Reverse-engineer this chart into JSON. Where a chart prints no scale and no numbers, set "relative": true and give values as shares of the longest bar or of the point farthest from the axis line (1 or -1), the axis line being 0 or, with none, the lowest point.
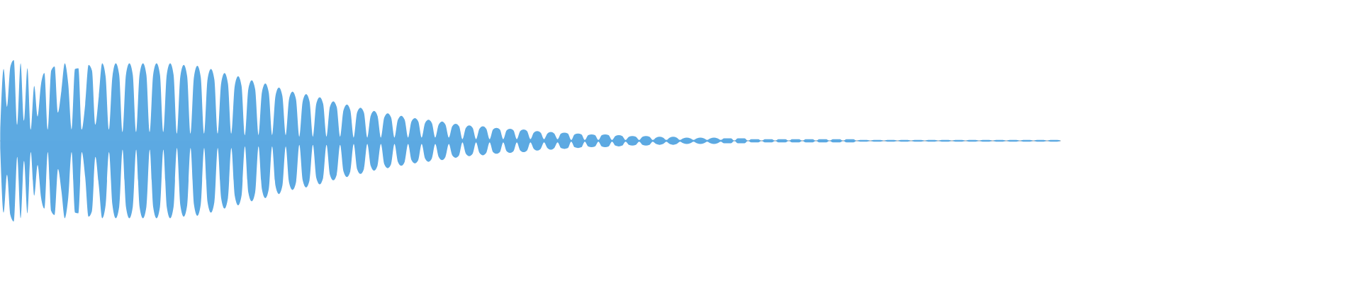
{
  "chart_data": {
    "type": "area",
    "relative": true,
    "categories": [
      null,
      null,
      null,
      null,
      null,
      null,
      null,
      null,
      null,
      null,
      null,
      null,
      null,
      null,
      null,
      null,
      null,
      null,
      null,
      null,
      null,
      null,
      null,
      null,
      null,
      null,
      null,
      null,
      null,
      null,
      null,
      null,
      null,
      null,
      null,
      null,
      null,
      null,
      null,
      null,
      null,
      null,
      null,
      null,
      null,
      null,
      null,
      null,
      null,
      null,
      null,
      null,
      null,
      null,
      null,
      null,
      null,
      null,
      null,
      null,
      null,
      null,
      null,
      null,
      null,
      null,
      null,
      null,
      null,
      null,
      null,
      null,
      null,
      null,
      null,
      null,
      null,
      null,
      null,
      null,
      null,
      null,
      null,
      null,
      null,
      null,
      null,
      null,
      null,
      null,
      null,
      null,
      null,
      null,
      null,
      null,
      null,
      null,
      null,
      null,
      null,
      null,
      null,
      null,
      null,
      null,
      null,
      null,
      null,
      null,
      null,
      null,
      null,
      null,
      null,
      null,
      null,
      null,
      null,
      null,
      null,
      null,
      null,
      null,
      null,
      null,
      null,
      null,
      null,
      null,
      null,
      null,
      null,
      null,
      null,
      null,
      null,
      null,
      null,
      null,
      null,
      null,
      null,
      null,
      null,
      null,
      null,
      null,
      null,
      null,
      null,
      null,
      null,
      null,
      null,
      null,
      null,
      null,
      null,
      null,
      null,
      null,
      null,
      null,
      null,
      null,
      null,
      null,
      null,
      null,
      null,
      null,
      null,
      null,
      null,
      null,
      null,
      null,
      null,
      null,
      null,
      null,
      null,
      null,
      null,
      null,
      null,
      null,
      null,
      null,
      null,
      null,
      null,
      null,
      null,
      null,
      null,
      null,
      null,
      null,
      null,
      null,
      null,
      null,
      null,
      null,
      null,
      null,
      null,
      null,
      null,
      null,
      null,
      null,
      null,
      null,
      null,
      null,
      null,
      null,
      null,
      null,
      null,
      null,
      null,
      null,
      null,
      null,
      null,
      null,
      null,
      null,
      null,
      null,
      null,
      null,
      null,
      null,
      null,
      null,
      null,
      null,
      null,
      null,
      null,
      null,
      null,
      null,
      null,
      null,
      null,
      null,
      null,
      null,
      null,
      null,
      null,
      null,
      null,
      null,
      null,
      null,
      null,
      null,
      null,
      null,
      null,
      null,
      null,
      null,
      null,
      null,
      null,
      null,
      null,
      null,
      null,
      null,
      null,
      null,
      null,
      null,
      null,
      null,
      null,
      null,
      null,
      null,
      null,
      null,
      null,
      null,
      null,
      null,
      null,
      null,
      null,
      null,
      null,
      null,
      null,
      null,
      null,
      null,
      null,
      null,
      null,
      null,
      null,
      null,
      null,
      null,
      null
    ],
    "series": [
      {
        "color": "#5daae2",
        "values": [
          0.09,
          0.89,
          0.42,
          0.92,
          1,
          0.2,
          0.96,
          0.25,
          0.9,
          0.14,
          0.68,
          0.3,
          0.7,
          0.84,
          0.14,
          0.87,
          0.92,
          0.35,
          0.62,
          0.96,
          0.71,
          0.14,
          0.89,
          0.9,
          0.14,
          0.45,
          0.94,
          0.87,
          0.2,
          0.55,
          0.96,
          0.8,
          0.14,
          0.79,
          0.96,
          0.82,
          0.11,
          0.82,
          0.96,
          0.82,
          0.11,
          0.82,
          0.96,
          0.82,
          0.11,
          0.82,
          0.96,
          0.82,
          0.11,
          0.82,
          0.96,
          0.82,
          0.09,
          0.8,
          0.94,
          0.8,
          0.09,
          0.79,
          0.93,
          0.79,
          0.09,
          0.76,
          0.89,
          0.76,
          0.09,
          0.71,
          0.84,
          0.71,
          0.09,
          0.68,
          0.8,
          0.68,
          0.07,
          0.64,
          0.75,
          0.64,
          0.07,
          0.6,
          0.71,
          0.6,
          0.07,
          0.56,
          0.66,
          0.56,
          0.07,
          0.52,
          0.61,
          0.52,
          0.05,
          0.49,
          0.58,
          0.49,
          0.05,
          0.46,
          0.54,
          0.46,
          0.05,
          0.42,
          0.49,
          0.42,
          0.05,
          0.38,
          0.45,
          0.38,
          0.04,
          0.35,
          0.41,
          0.35,
          0.04,
          0.31,
          0.37,
          0.31,
          0.04,
          0.29,
          0.34,
          0.29,
          0.04,
          0.26,
          0.31,
          0.26,
          0.04,
          0.24,
          0.28,
          0.24,
          0.04,
          0.22,
          0.26,
          0.22,
          0.04,
          0.2,
          0.24,
          0.2,
          0.04,
          0.18,
          0.21,
          0.18,
          0.02,
          0.16,
          0.19,
          0.16,
          0.02,
          0.15,
          0.18,
          0.15,
          0.02,
          0.14,
          0.16,
          0.14,
          0.02,
          0.13,
          0.15,
          0.13,
          0.02,
          0.12,
          0.14,
          0.12,
          0.02,
          0.1,
          0.12,
          0.1,
          0.02,
          0.09,
          0.11,
          0.09,
          0.02,
          0.09,
          0.1,
          0.09,
          0.01,
          0.08,
          0.09,
          0.08,
          0.01,
          0.07,
          0.08,
          0.07,
          0.01,
          0.07,
          0.08,
          0.07,
          0.01,
          0.06,
          0.07,
          0.06,
          0.01,
          0.05,
          0.06,
          0.05,
          0.01,
          0.05,
          0.06,
          0.05,
          0.01,
          0.04,
          0.05,
          0.04,
          0.01,
          0.04,
          0.05,
          0.04,
          0.01,
          0.03,
          0.04,
          0.03,
          0.01,
          0.03,
          0.04,
          0.03,
          0.01,
          0.03,
          0.04,
          0.03,
          0.01,
          0.03,
          0.03,
          0.03,
          0,
          0.03,
          0.03,
          0.03,
          0,
          0.02,
          0.02,
          0.02,
          0,
          0.02,
          0.02,
          0.02,
          0,
          0.02,
          0.02,
          0.02,
          0,
          0.02,
          0.02,
          0.02,
          0,
          0.02,
          0.02,
          0.02,
          0,
          0.02,
          0.02,
          0.02,
          0,
          0.02,
          0.02,
          0.02,
          0,
          0.02,
          0.02,
          0.02,
          0,
          0.01,
          0.01,
          0.01,
          0,
          0.01,
          0.01,
          0.01,
          0,
          0.01,
          0.01,
          0.01,
          0,
          0.01,
          0.01,
          0.01,
          0,
          0.01,
          0.01,
          0.01,
          0,
          0.01,
          0.01,
          0.01,
          0,
          0.01,
          0.01,
          0.01,
          0,
          0.01,
          0.01,
          0.01,
          0,
          0.01,
          0.01,
          0.01,
          0,
          0.01,
          0.01,
          0.01,
          0,
          0.01,
          0.01,
          0.01,
          0,
          0.01,
          0.01,
          0.01,
          0,
          0.01,
          0.01,
          0.01,
          0,
          0.01,
          0.01,
          0.01,
          0,
          0.01,
          0.01,
          0.01,
          0
        ]
      },
      {
        "color": "#5ca9e2",
        "values": [
          -0.09,
          -0.89,
          -0.42,
          -0.92,
          -1,
          -0.2,
          -0.96,
          -0.25,
          -0.9,
          -0.14,
          -0.68,
          -0.3,
          -0.7,
          -0.84,
          -0.14,
          -0.87,
          -0.92,
          -0.35,
          -0.62,
          -0.96,
          -0.71,
          -0.14,
          -0.89,
          -0.9,
          -0.14,
          -0.45,
          -0.94,
          -0.87,
          -0.2,
          -0.55,
          -0.96,
          -0.8,
          -0.14,
          -0.79,
          -0.96,
          -0.82,
          -0.11,
          -0.82,
          -0.96,
          -0.82,
          -0.11,
          -0.82,
          -0.96,
          -0.82,
          -0.11,
          -0.82,
          -0.96,
          -0.82,
          -0.11,
          -0.82,
          -0.96,
          -0.82,
          -0.09,
          -0.8,
          -0.94,
          -0.8,
          -0.09,
          -0.79,
          -0.93,
          -0.79,
          -0.09,
          -0.76,
          -0.89,
          -0.76,
          -0.09,
          -0.71,
          -0.84,
          -0.71,
          -0.09,
          -0.68,
          -0.8,
          -0.68,
          -0.07,
          -0.64,
          -0.75,
          -0.64,
          -0.07,
          -0.6,
          -0.71,
          -0.6,
          -0.07,
          -0.56,
          -0.66,
          -0.56,
          -0.07,
          -0.52,
          -0.61,
          -0.52,
          -0.05,
          -0.49,
          -0.58,
          -0.49,
          -0.05,
          -0.46,
          -0.54,
          -0.46,
          -0.05,
          -0.42,
          -0.49,
          -0.42,
          -0.05,
          -0.38,
          -0.45,
          -0.38,
          -0.04,
          -0.35,
          -0.41,
          -0.35,
          -0.04,
          -0.31,
          -0.37,
          -0.31,
          -0.04,
          -0.29,
          -0.34,
          -0.29,
          -0.04,
          -0.26,
          -0.31,
          -0.26,
          -0.04,
          -0.24,
          -0.28,
          -0.24,
          -0.04,
          -0.22,
          -0.26,
          -0.22,
          -0.04,
          -0.2,
          -0.24,
          -0.2,
          -0.04,
          -0.18,
          -0.21,
          -0.18,
          -0.02,
          -0.16,
          -0.19,
          -0.16,
          -0.02,
          -0.15,
          -0.18,
          -0.15,
          -0.02,
          -0.14,
          -0.16,
          -0.14,
          -0.02,
          -0.13,
          -0.15,
          -0.13,
          -0.02,
          -0.12,
          -0.14,
          -0.12,
          -0.02,
          -0.1,
          -0.12,
          -0.1,
          -0.02,
          -0.09,
          -0.11,
          -0.09,
          -0.02,
          -0.09,
          -0.1,
          -0.09,
          -0.01,
          -0.08,
          -0.09,
          -0.08,
          -0.01,
          -0.07,
          -0.08,
          -0.07,
          -0.01,
          -0.07,
          -0.08,
          -0.07,
          -0.01,
          -0.06,
          -0.07,
          -0.06,
          -0.01,
          -0.05,
          -0.06,
          -0.05,
          -0.01,
          -0.05,
          -0.06,
          -0.05,
          -0.01,
          -0.04,
          -0.05,
          -0.04,
          -0.01,
          -0.04,
          -0.05,
          -0.04,
          -0.01,
          -0.03,
          -0.04,
          -0.03,
          -0.01,
          -0.03,
          -0.04,
          -0.03,
          -0.01,
          -0.03,
          -0.04,
          -0.03,
          -0.01,
          -0.03,
          -0.03,
          -0.03,
          0,
          -0.03,
          -0.03,
          -0.03,
          0,
          -0.02,
          -0.02,
          -0.02,
          0,
          -0.02,
          -0.02,
          -0.02,
          0,
          -0.02,
          -0.02,
          -0.02,
          0,
          -0.02,
          -0.02,
          -0.02,
          0,
          -0.02,
          -0.02,
          -0.02,
          0,
          -0.02,
          -0.02,
          -0.02,
          0,
          -0.02,
          -0.02,
          -0.02,
          0,
          -0.02,
          -0.02,
          -0.02,
          0,
          -0.01,
          -0.01,
          -0.01,
          0,
          -0.01,
          -0.01,
          -0.01,
          0,
          -0.01,
          -0.01,
          -0.01,
          0,
          -0.01,
          -0.01,
          -0.01,
          0,
          -0.01,
          -0.01,
          -0.01,
          0,
          -0.01,
          -0.01,
          -0.01,
          0,
          -0.01,
          -0.01,
          -0.01,
          0,
          -0.01,
          -0.01,
          -0.01,
          0,
          -0.01,
          -0.01,
          -0.01,
          0,
          -0.01,
          -0.01,
          -0.01,
          0,
          -0.01,
          -0.01,
          -0.01,
          0,
          -0.01,
          -0.01,
          -0.01,
          0,
          -0.01,
          -0.01,
          -0.01,
          0,
          -0.01,
          -0.01,
          -0.01,
          0,
          -0.01,
          -0.01,
          -0.01,
          0
        ]
      }
    ]
  }
}
